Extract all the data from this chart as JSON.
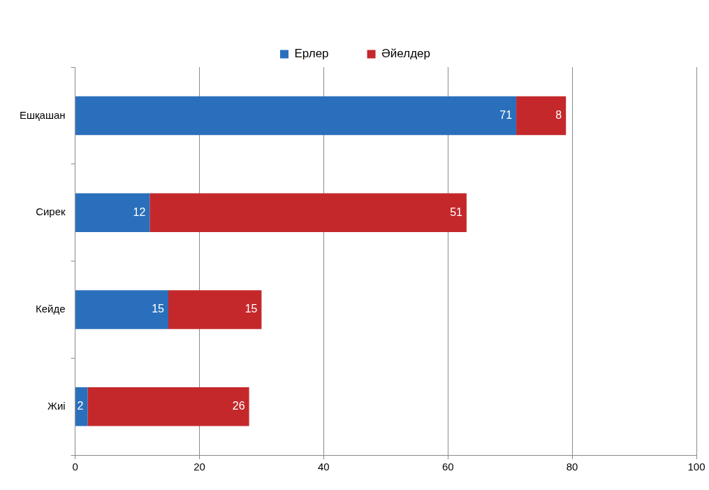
{
  "chart_data": {
    "type": "bar",
    "orientation": "horizontal",
    "stacked": true,
    "categories": [
      "Ешқашан",
      "Сирек",
      "Кейде",
      "Жиі"
    ],
    "series": [
      {
        "name": "Ерлер",
        "color": "#2a6fbb",
        "values": [
          71,
          12,
          15,
          2
        ]
      },
      {
        "name": "Әйелдер",
        "color": "#c4282b",
        "values": [
          8,
          51,
          15,
          26
        ]
      }
    ],
    "xlim": [
      0,
      100
    ],
    "xticks": [
      0,
      20,
      40,
      60,
      80,
      100
    ],
    "grid": "x",
    "legend": "top",
    "data_labels": true
  }
}
